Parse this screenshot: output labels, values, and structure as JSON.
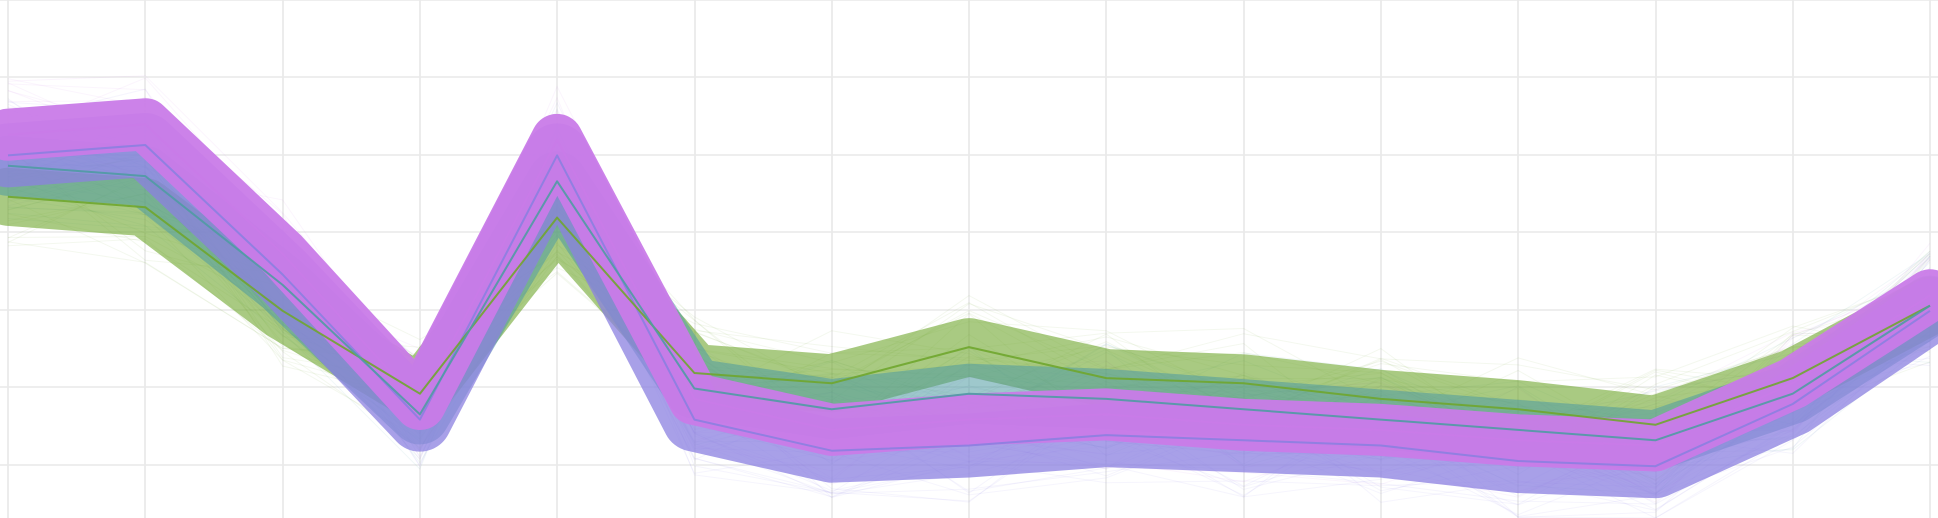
{
  "chart_data": {
    "type": "line",
    "title": "",
    "xlabel": "",
    "ylabel": "",
    "x": [
      0,
      1,
      2,
      3,
      4,
      5,
      6,
      7,
      8,
      9,
      10,
      11,
      12,
      13,
      14
    ],
    "xlim": [
      0,
      14
    ],
    "ylim": [
      0,
      1
    ],
    "grid": true,
    "legend": "none",
    "series": [
      {
        "color": "#c97be8",
        "values": [
          0.74,
          0.76,
          0.51,
          0.22,
          0.73,
          0.23,
          0.17,
          0.19,
          0.2,
          0.18,
          0.17,
          0.15,
          0.14,
          0.26,
          0.43
        ]
      },
      {
        "color": "#8b80e0",
        "values": [
          0.7,
          0.72,
          0.47,
          0.19,
          0.7,
          0.19,
          0.13,
          0.14,
          0.16,
          0.15,
          0.14,
          0.11,
          0.1,
          0.22,
          0.4
        ]
      },
      {
        "color": "#6fa62e",
        "values": [
          0.62,
          0.6,
          0.4,
          0.24,
          0.58,
          0.28,
          0.26,
          0.33,
          0.27,
          0.26,
          0.23,
          0.21,
          0.18,
          0.27,
          0.41
        ]
      },
      {
        "color": "#4f9ba3",
        "values": [
          0.68,
          0.66,
          0.45,
          0.2,
          0.65,
          0.25,
          0.21,
          0.24,
          0.23,
          0.21,
          0.19,
          0.17,
          0.15,
          0.24,
          0.41
        ]
      }
    ]
  }
}
